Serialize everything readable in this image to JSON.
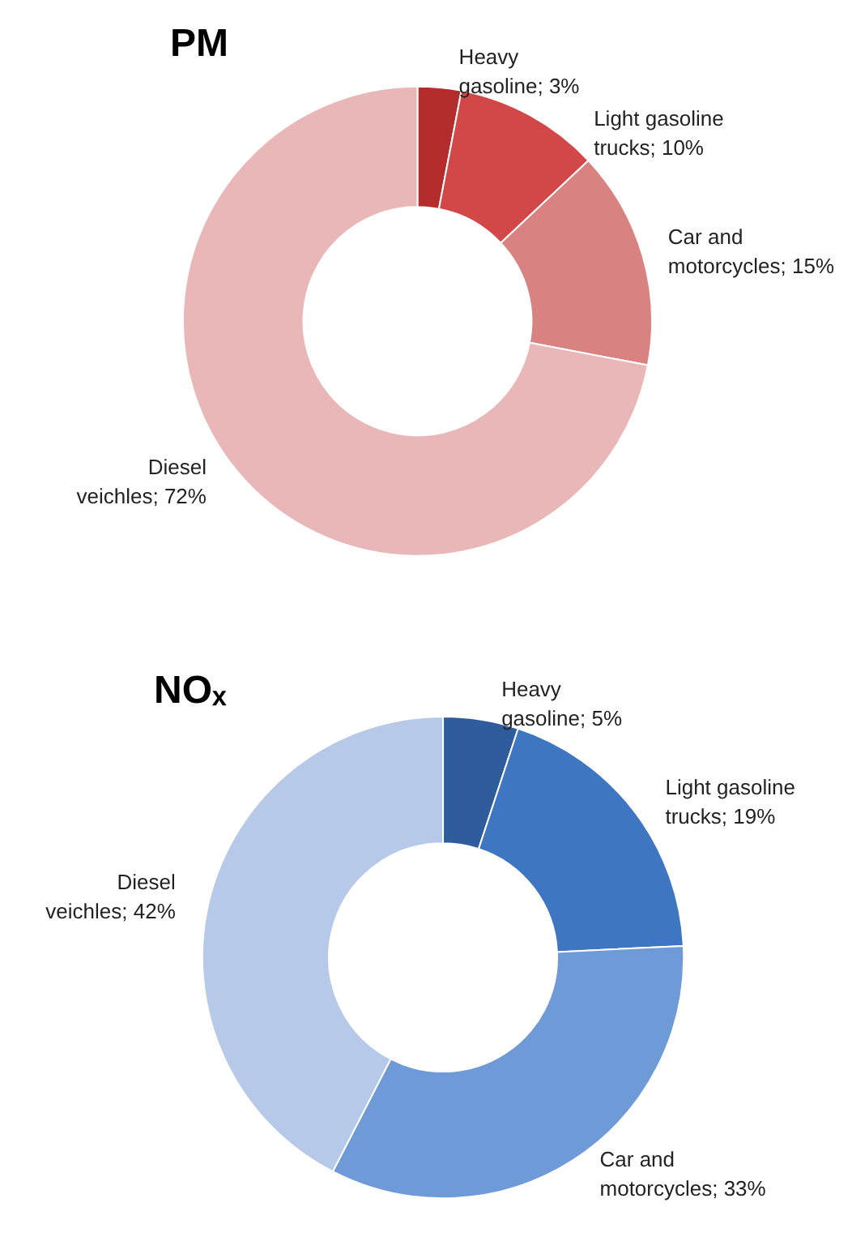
{
  "chart_data": [
    {
      "type": "donut",
      "title": "PM",
      "categories": [
        "Heavy gasoline",
        "Light gasoline trucks",
        "Car and motorcycles",
        "Diesel veichles"
      ],
      "values": [
        3,
        10,
        15,
        72
      ],
      "value_labels": [
        "3%",
        "10%",
        "15%",
        "72%"
      ],
      "colors": [
        "#b52c2c",
        "#d24747",
        "#d98282",
        "#e9b7b7"
      ],
      "legend": false
    },
    {
      "type": "donut",
      "title": "NOₓ",
      "categories": [
        "Heavy gasoline",
        "Light gasoline trucks",
        "Car and motorcycles",
        "Diesel veichles"
      ],
      "values": [
        5,
        19,
        33,
        42
      ],
      "value_labels": [
        "5%",
        "19%",
        "33%",
        "42%"
      ],
      "colors": [
        "#2f5c9c",
        "#3f76c2",
        "#6e9ad8",
        "#b6c9e9"
      ],
      "legend": false
    }
  ]
}
